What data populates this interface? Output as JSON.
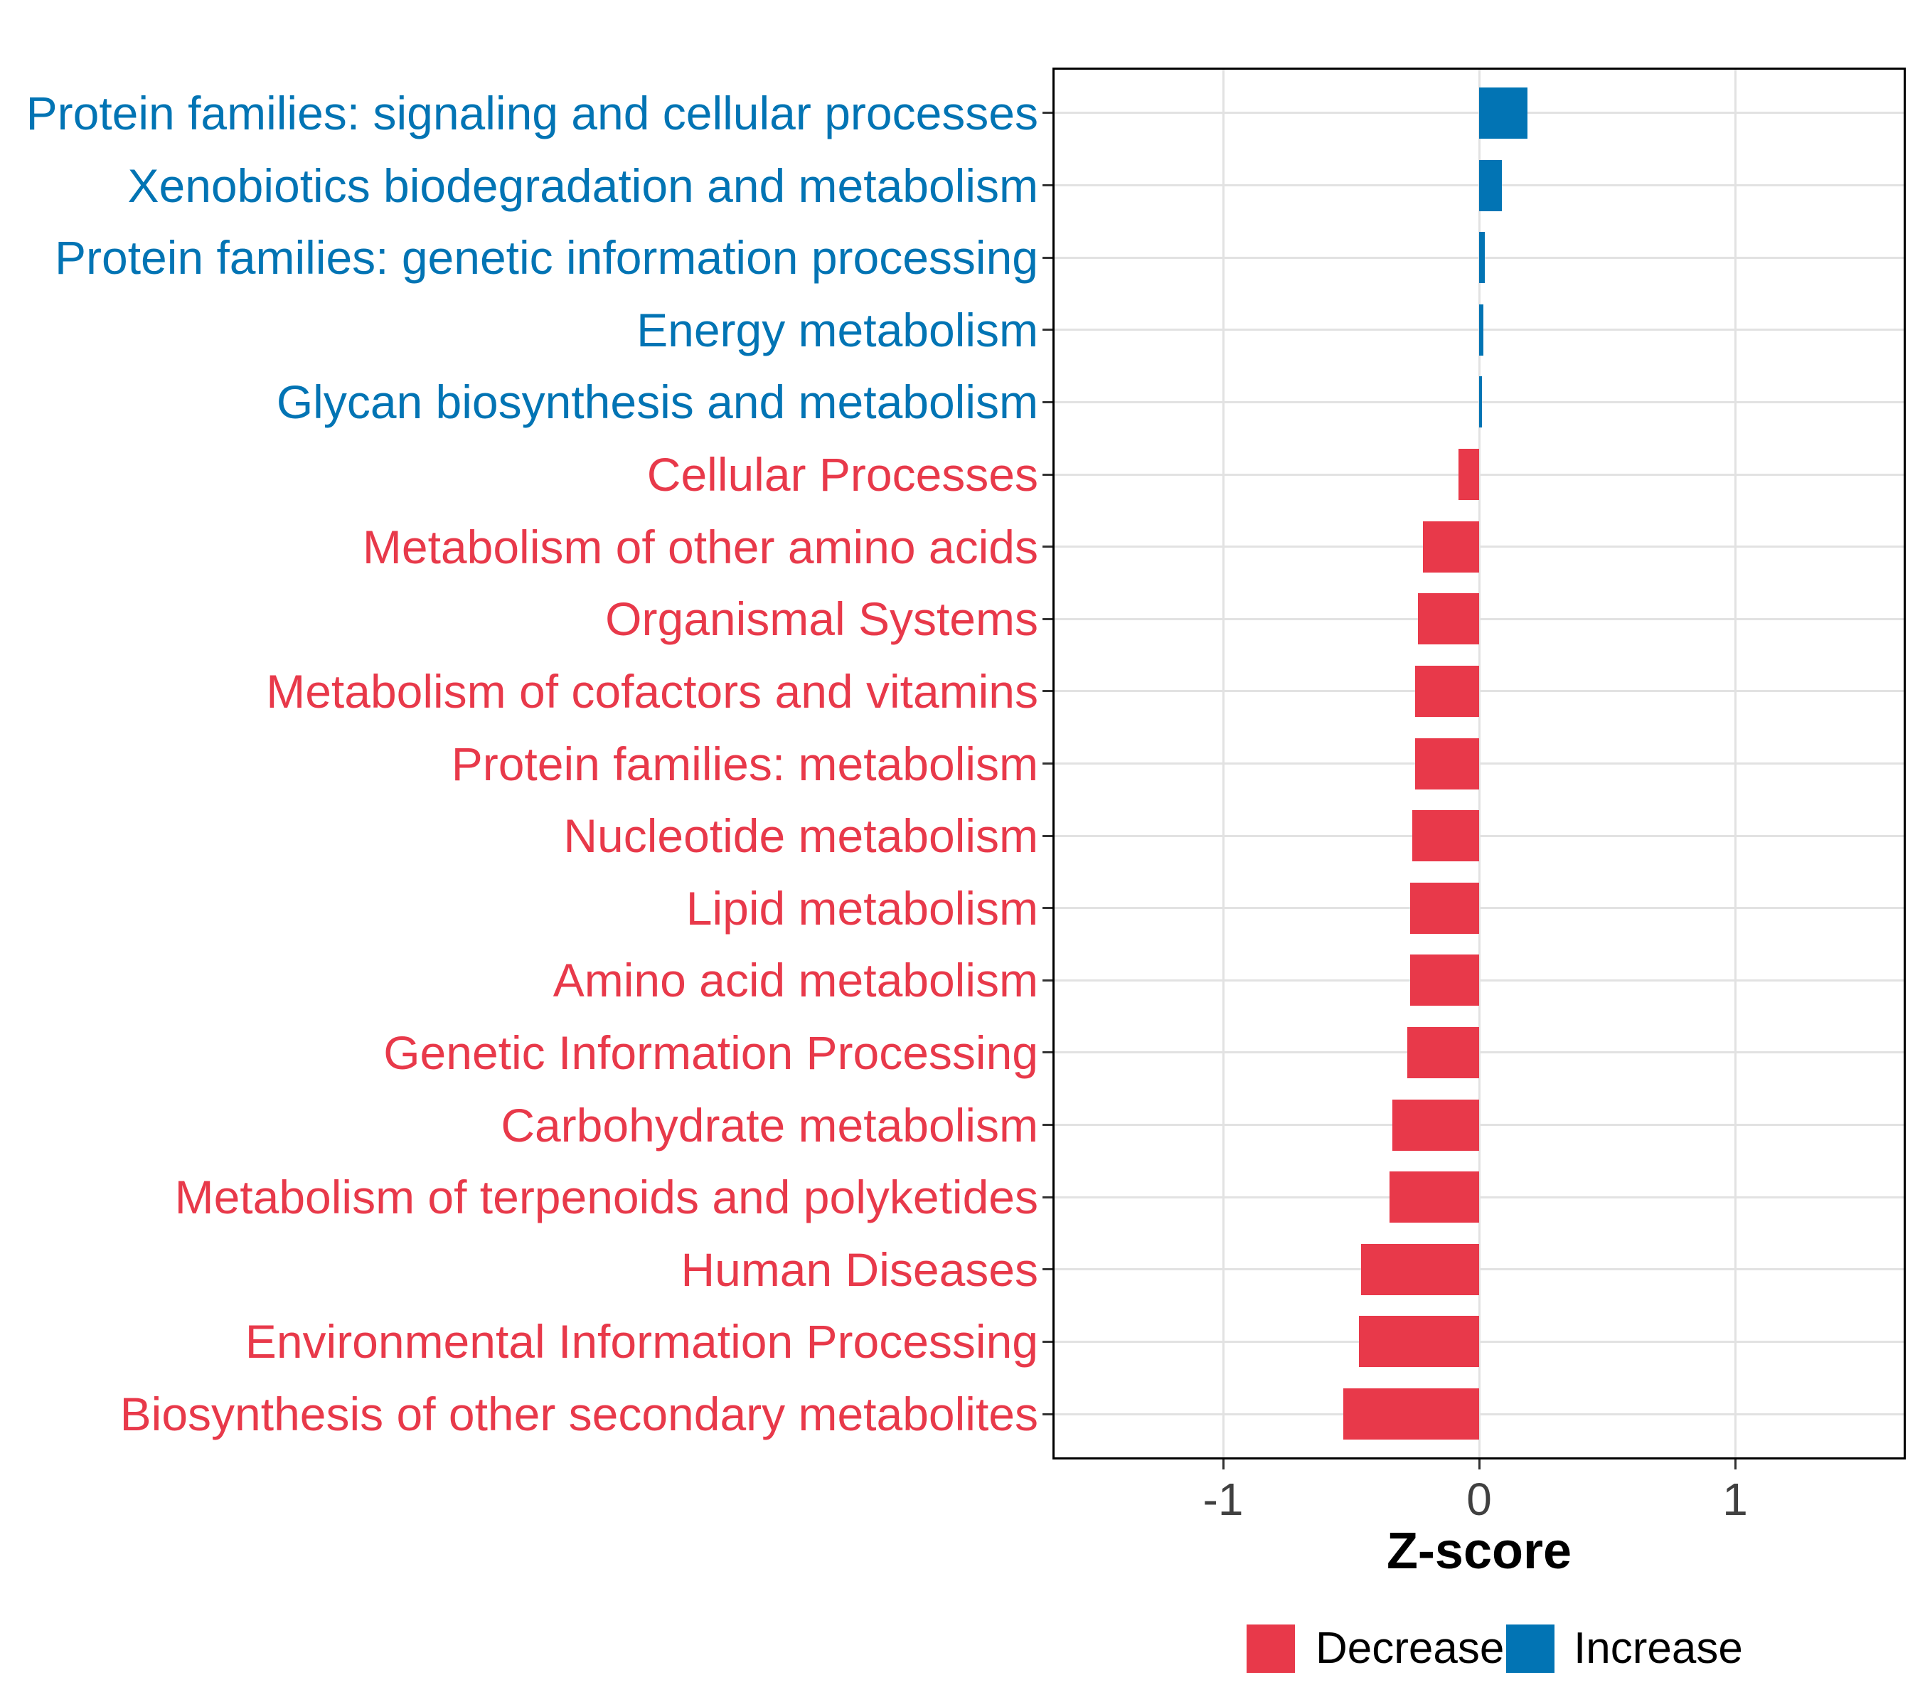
{
  "chart_data": {
    "type": "bar",
    "orientation": "horizontal",
    "title": "",
    "xlabel": "Z-score",
    "xlim": [
      -1.66,
      1.66
    ],
    "x_ticks": [
      {
        "value": -1,
        "label": "-1"
      },
      {
        "value": 0,
        "label": "0"
      },
      {
        "value": 1,
        "label": "1"
      }
    ],
    "grid": "major-only",
    "categories": [
      "Protein families: signaling and cellular processes",
      "Xenobiotics biodegradation and metabolism",
      "Protein families: genetic information processing",
      "Energy metabolism",
      "Glycan biosynthesis and metabolism",
      "Cellular Processes",
      "Metabolism of other amino acids",
      "Organismal Systems",
      "Metabolism of cofactors and vitamins",
      "Protein families: metabolism",
      "Nucleotide metabolism",
      "Lipid metabolism",
      "Amino acid metabolism",
      "Genetic Information Processing",
      "Carbohydrate metabolism",
      "Metabolism of terpenoids and polyketides",
      "Human Diseases",
      "Environmental Information Processing",
      "Biosynthesis of other secondary metabolites"
    ],
    "series": [
      {
        "label": "Protein families: signaling and cellular processes",
        "z": 0.19,
        "direction": "Increase"
      },
      {
        "label": "Xenobiotics biodegradation and metabolism",
        "z": 0.09,
        "direction": "Increase"
      },
      {
        "label": "Protein families: genetic information processing",
        "z": 0.022,
        "direction": "Increase"
      },
      {
        "label": "Energy metabolism",
        "z": 0.017,
        "direction": "Increase"
      },
      {
        "label": "Glycan biosynthesis and metabolism",
        "z": 0.012,
        "direction": "Increase"
      },
      {
        "label": "Cellular Processes",
        "z": -0.08,
        "direction": "Decrease"
      },
      {
        "label": "Metabolism of other amino acids",
        "z": -0.22,
        "direction": "Decrease"
      },
      {
        "label": "Organismal Systems",
        "z": -0.24,
        "direction": "Decrease"
      },
      {
        "label": "Metabolism of cofactors and vitamins",
        "z": -0.25,
        "direction": "Decrease"
      },
      {
        "label": "Protein families: metabolism",
        "z": -0.25,
        "direction": "Decrease"
      },
      {
        "label": "Nucleotide metabolism",
        "z": -0.26,
        "direction": "Decrease"
      },
      {
        "label": "Lipid metabolism",
        "z": -0.27,
        "direction": "Decrease"
      },
      {
        "label": "Amino acid metabolism",
        "z": -0.27,
        "direction": "Decrease"
      },
      {
        "label": "Genetic Information Processing",
        "z": -0.28,
        "direction": "Decrease"
      },
      {
        "label": "Carbohydrate metabolism",
        "z": -0.34,
        "direction": "Decrease"
      },
      {
        "label": "Metabolism of terpenoids and polyketides",
        "z": -0.35,
        "direction": "Decrease"
      },
      {
        "label": "Human Diseases",
        "z": -0.46,
        "direction": "Decrease"
      },
      {
        "label": "Environmental Information Processing",
        "z": -0.47,
        "direction": "Decrease"
      },
      {
        "label": "Biosynthesis of other secondary metabolites",
        "z": -0.53,
        "direction": "Decrease"
      }
    ],
    "colors": {
      "Decrease": "#E8394A",
      "Increase": "#0274B4"
    },
    "grid_color": "#E2E2E2",
    "axis_text_color": "#404040",
    "legend": {
      "position": "bottom",
      "entries": [
        {
          "label": "Decrease",
          "color": "#E8394A"
        },
        {
          "label": "Increase",
          "color": "#0274B4"
        }
      ]
    }
  }
}
